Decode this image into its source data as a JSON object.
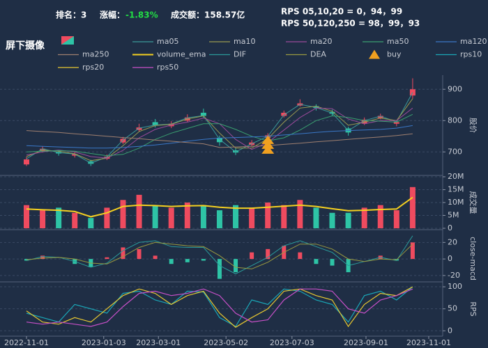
{
  "header": {
    "rank": "排名：3",
    "change_label": "涨幅：",
    "change": "-1.83%",
    "turnover": "成交额：158.57亿",
    "rps_short": "RPS 05,10,20 = 0，94，99",
    "rps_long": "RPS 50,120,250 = 98，99，93",
    "sector": "屏下摄像"
  },
  "chart_data": [
    {
      "type": "candlestick",
      "y_label": "股价",
      "up_color": "#ef4b5f",
      "down_color": "#2ec4a6",
      "x": [
        0,
        10,
        20,
        30,
        40,
        50,
        60,
        70,
        80,
        90,
        100,
        110,
        120,
        130,
        140,
        150,
        160,
        170,
        180,
        190,
        200,
        210,
        220,
        230,
        240
      ],
      "xlim": [
        0,
        250
      ],
      "open": [
        660,
        702,
        700,
        688,
        670,
        678,
        730,
        770,
        795,
        782,
        800,
        825,
        745,
        705,
        722,
        745,
        815,
        848,
        846,
        828,
        775,
        790,
        808,
        790,
        880
      ],
      "high": [
        684,
        718,
        706,
        700,
        675,
        692,
        748,
        790,
        805,
        798,
        820,
        838,
        752,
        712,
        738,
        760,
        832,
        868,
        852,
        835,
        780,
        810,
        822,
        800,
        935
      ],
      "low": [
        655,
        698,
        688,
        682,
        655,
        674,
        725,
        765,
        778,
        776,
        796,
        808,
        720,
        690,
        718,
        742,
        810,
        845,
        832,
        815,
        752,
        786,
        804,
        782,
        870
      ],
      "close": [
        676,
        710,
        695,
        693,
        662,
        685,
        742,
        778,
        784,
        790,
        810,
        815,
        731,
        698,
        730,
        753,
        825,
        855,
        840,
        822,
        762,
        803,
        815,
        795,
        900
      ],
      "series": [
        {
          "name": "ma05",
          "color": "#3a9a9a",
          "values": [
            678,
            710,
            698,
            693,
            664,
            684,
            738,
            776,
            786,
            789,
            809,
            816,
            740,
            700,
            726,
            750,
            818,
            852,
            842,
            824,
            768,
            800,
            814,
            796,
            890
          ]
        },
        {
          "name": "ma10",
          "color": "#9a9a50",
          "values": [
            685,
            706,
            702,
            694,
            672,
            680,
            720,
            765,
            784,
            788,
            805,
            815,
            760,
            712,
            712,
            742,
            795,
            840,
            846,
            830,
            785,
            795,
            808,
            800,
            870
          ]
        },
        {
          "name": "ma20",
          "color": "#9a4a9a",
          "values": [
            690,
            700,
            706,
            700,
            685,
            680,
            705,
            745,
            772,
            786,
            795,
            808,
            790,
            740,
            708,
            730,
            770,
            810,
            840,
            838,
            805,
            790,
            800,
            800,
            840
          ]
        },
        {
          "name": "ma50",
          "color": "#3aa070",
          "values": [
            700,
            702,
            704,
            702,
            695,
            688,
            692,
            712,
            740,
            760,
            775,
            790,
            790,
            772,
            750,
            735,
            745,
            770,
            800,
            815,
            810,
            800,
            798,
            795,
            820
          ]
        },
        {
          "name": "ma120",
          "color": "#3a78c8",
          "values": [
            720,
            718,
            716,
            714,
            712,
            712,
            714,
            718,
            722,
            728,
            734,
            740,
            744,
            746,
            748,
            750,
            754,
            758,
            762,
            766,
            768,
            770,
            772,
            776,
            784
          ]
        },
        {
          "name": "ma250",
          "color": "#a08070",
          "values": [
            768,
            765,
            762,
            758,
            754,
            750,
            746,
            742,
            738,
            734,
            730,
            726,
            714,
            716,
            718,
            720,
            724,
            728,
            732,
            736,
            740,
            744,
            748,
            752,
            758
          ]
        }
      ],
      "markers": [
        {
          "name": "buy",
          "color": "#f0a020",
          "x": [
            150
          ],
          "values": [
            712
          ]
        }
      ],
      "ylim": [
        625,
        945
      ],
      "yticks": [
        700,
        800,
        900
      ],
      "grid": true
    },
    {
      "type": "bar",
      "y_label": "成交量",
      "values": [
        9000000.0,
        7000000.0,
        8000000.0,
        6000000.0,
        4000000.0,
        8000000.0,
        11000000.0,
        13000000.0,
        9000000.0,
        8000000.0,
        10000000.0,
        9000000.0,
        7000000.0,
        9000000.0,
        8000000.0,
        10000000.0,
        9000000.0,
        11000000.0,
        8000000.0,
        6000000.0,
        6000000.0,
        8000000.0,
        9000000.0,
        7000000.0,
        16000000.0
      ],
      "series": [
        {
          "name": "volume_ema",
          "color": "#f5d020",
          "values": [
            7500000.0,
            7200000.0,
            7000000.0,
            6500000.0,
            4500000.0,
            6000000.0,
            8500000.0,
            9000000.0,
            8800000.0,
            8500000.0,
            8700000.0,
            8800000.0,
            8200000.0,
            7800000.0,
            7800000.0,
            8200000.0,
            8600000.0,
            9000000.0,
            8500000.0,
            7600000.0,
            6800000.0,
            7000000.0,
            7300000.0,
            7500000.0,
            12000000.0
          ]
        }
      ],
      "ylim": [
        0,
        20000000.0
      ],
      "yticks": [
        0,
        {
          "value": 5000000.0,
          "label": "5M"
        },
        {
          "value": 10000000.0,
          "label": "10M"
        },
        {
          "value": 15000000.0,
          "label": "15M"
        },
        {
          "value": 20000000.0,
          "label": "20M"
        }
      ],
      "grid": true
    },
    {
      "type": "macd",
      "y_label": "close-macd",
      "up_color": "#ef4b5f",
      "down_color": "#2ec4a6",
      "values": [
        -2,
        4,
        0,
        -6,
        -10,
        2,
        14,
        12,
        4,
        -6,
        -4,
        -2,
        -24,
        -16,
        8,
        12,
        16,
        8,
        -6,
        -8,
        -16,
        0,
        4,
        -2,
        20
      ],
      "series": [
        {
          "name": "DIF",
          "color": "#2a9a9a",
          "values": [
            -2,
            3,
            2,
            -3,
            -10,
            -5,
            10,
            20,
            22,
            15,
            14,
            14,
            -8,
            -18,
            -8,
            2,
            16,
            22,
            15,
            8,
            -8,
            -3,
            2,
            -2,
            28
          ]
        },
        {
          "name": "DEA",
          "color": "#9a9a40",
          "values": [
            -1,
            1,
            2,
            0,
            -5,
            -6,
            3,
            14,
            20,
            18,
            16,
            15,
            4,
            -10,
            -12,
            -4,
            8,
            18,
            18,
            12,
            0,
            -3,
            0,
            -1,
            18
          ]
        }
      ],
      "ylim": [
        -26,
        27
      ],
      "yticks": [
        -20,
        0,
        20
      ],
      "grid": true
    },
    {
      "type": "line",
      "y_label": "RPS",
      "series": [
        {
          "name": "rps10",
          "color": "#1aa8b8",
          "values": [
            40,
            30,
            20,
            60,
            50,
            40,
            85,
            90,
            70,
            60,
            90,
            88,
            30,
            10,
            70,
            60,
            95,
            90,
            70,
            60,
            20,
            80,
            90,
            70,
            100
          ]
        },
        {
          "name": "rps20",
          "color": "#e8c830",
          "values": [
            45,
            20,
            15,
            30,
            20,
            50,
            80,
            95,
            85,
            60,
            80,
            90,
            40,
            8,
            30,
            50,
            90,
            95,
            80,
            70,
            10,
            60,
            85,
            80,
            100
          ]
        },
        {
          "name": "rps50",
          "color": "#c850c8",
          "values": [
            20,
            15,
            20,
            15,
            10,
            20,
            55,
            85,
            90,
            80,
            85,
            95,
            80,
            40,
            20,
            25,
            70,
            95,
            95,
            90,
            50,
            40,
            70,
            80,
            95
          ]
        }
      ],
      "ylim": [
        -9,
        108
      ],
      "yticks": [
        0,
        50,
        100
      ],
      "grid": true,
      "xticks": [
        {
          "value": 0,
          "label": "2022-11-01"
        },
        {
          "value": 48,
          "label": "2023-01-03"
        },
        {
          "value": 82,
          "label": "2023-03-01"
        },
        {
          "value": 124,
          "label": "2023-05-02"
        },
        {
          "value": 165,
          "label": "2023-07-03"
        },
        {
          "value": 211,
          "label": "2023-09-01"
        },
        {
          "value": 250,
          "label": "2023-11-01"
        }
      ]
    }
  ]
}
